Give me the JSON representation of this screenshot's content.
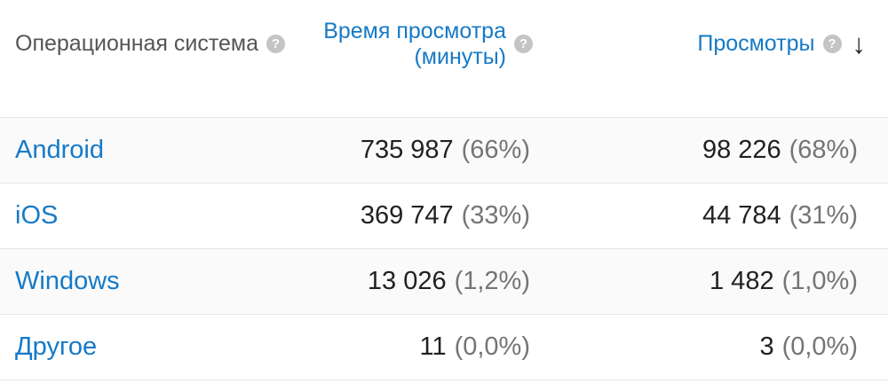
{
  "header": {
    "os": {
      "label": "Операционная система"
    },
    "watch_time": {
      "label_line1": "Время просмотра",
      "label_line2": "(минуты)"
    },
    "views": {
      "label": "Просмотры",
      "sort": "desc"
    }
  },
  "icons": {
    "help_glyph": "?",
    "sort_desc_glyph": "↓"
  },
  "colors": {
    "link_blue": "#167ac6",
    "value_dark": "#212121",
    "percent_gray": "#757575",
    "header_gray": "#555555",
    "row_border": "#e5e5e5",
    "row_stripe": "#fafafa",
    "help_icon_bg": "#c4c4c4",
    "sort_arrow": "#212121"
  },
  "rows": [
    {
      "os": "Android",
      "watch_time": "735 987",
      "watch_time_pct": "(66%)",
      "views": "98 226",
      "views_pct": "(68%)"
    },
    {
      "os": "iOS",
      "watch_time": "369 747",
      "watch_time_pct": "(33%)",
      "views": "44 784",
      "views_pct": "(31%)"
    },
    {
      "os": "Windows",
      "watch_time": "13 026",
      "watch_time_pct": "(1,2%)",
      "views": "1 482",
      "views_pct": "(1,0%)"
    },
    {
      "os": "Другое",
      "watch_time": "11",
      "watch_time_pct": "(0,0%)",
      "views": "3",
      "views_pct": "(0,0%)"
    }
  ]
}
